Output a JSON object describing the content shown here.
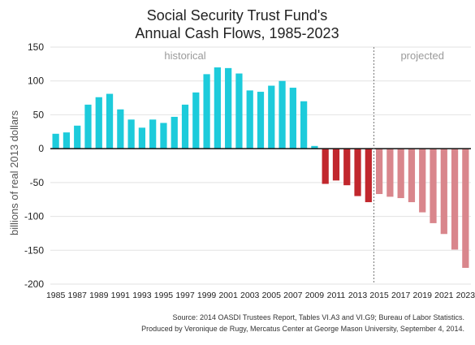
{
  "chart_data": {
    "type": "bar",
    "title": [
      "Social Security Trust Fund's",
      "Annual Cash Flows, 1985-2023"
    ],
    "ylabel": "billions of real 2013 dollars",
    "xlabel": "",
    "ylim": [
      -200,
      150
    ],
    "yticks": [
      150,
      100,
      50,
      0,
      -50,
      -100,
      -150,
      -200
    ],
    "x_tick_labels": [
      "1985",
      "1987",
      "1989",
      "1991",
      "1993",
      "1995",
      "1997",
      "1999",
      "2001",
      "2003",
      "2005",
      "2007",
      "2009",
      "2011",
      "2013",
      "2015",
      "2017",
      "2019",
      "2021",
      "2023"
    ],
    "grid": true,
    "categories": [
      1985,
      1986,
      1987,
      1988,
      1989,
      1990,
      1991,
      1992,
      1993,
      1994,
      1995,
      1996,
      1997,
      1998,
      1999,
      2000,
      2001,
      2002,
      2003,
      2004,
      2005,
      2006,
      2007,
      2008,
      2009,
      2010,
      2011,
      2012,
      2013,
      2014,
      2015,
      2016,
      2017,
      2018,
      2019,
      2020,
      2021,
      2022,
      2023
    ],
    "values": [
      22,
      24,
      34,
      65,
      76,
      81,
      58,
      43,
      31,
      43,
      38,
      47,
      65,
      83,
      110,
      120,
      119,
      111,
      86,
      84,
      93,
      100,
      90,
      70,
      4,
      -52,
      -47,
      -54,
      -70,
      -79,
      -67,
      -71,
      -73,
      -79,
      -94,
      -110,
      -126,
      -149,
      -176
    ],
    "segments": [
      {
        "label": "historical",
        "from": 1985,
        "to": 2009,
        "color": "#1dcbdb"
      },
      {
        "label": "",
        "from": 2010,
        "to": 2014,
        "color": "#c1272d"
      },
      {
        "label": "projected",
        "from": 2015,
        "to": 2023,
        "color": "#d9868c"
      }
    ],
    "divider_after": 2014,
    "annotations": [
      "historical",
      "projected"
    ]
  },
  "source": {
    "line1": "Source: 2014 OASDI Trustees Report, Tables VI.A3 and VI.G9; Bureau of Labor Statistics.",
    "line2": "Produced by Veronique de Rugy, Mercatus Center at George Mason University, September 4, 2014."
  }
}
